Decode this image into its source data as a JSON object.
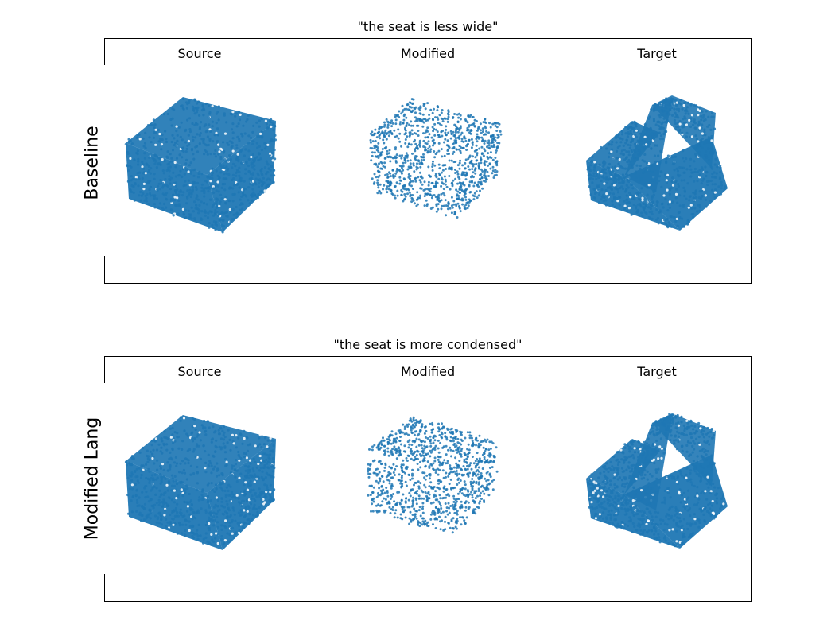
{
  "panels": [
    {
      "title": "\"the seat is less wide\"",
      "row_label": "Baseline",
      "columns": [
        "Source",
        "Modified",
        "Target"
      ]
    },
    {
      "title": "\"the seat is more condensed\"",
      "row_label": "Modified Lang",
      "columns": [
        "Source",
        "Modified",
        "Target"
      ]
    }
  ],
  "point_color": "#1f77b4"
}
